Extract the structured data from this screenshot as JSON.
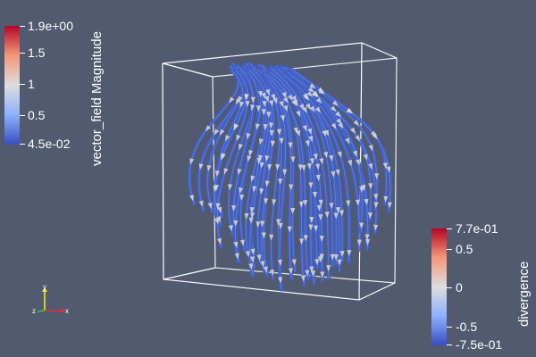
{
  "colorbar_left": {
    "title": "vector_field Magnitude",
    "labels": [
      "1.9e+00",
      "1.5",
      "1",
      "0.5",
      "4.5e-02"
    ],
    "colormap": [
      "#b40426",
      "#f4987a",
      "#dddddd",
      "#8db0fe",
      "#3b4cc0"
    ]
  },
  "colorbar_right": {
    "title": "divergence",
    "labels": [
      "7.7e-01",
      "0.5",
      "0",
      "-0.5",
      "-7.5e-01"
    ],
    "colormap": [
      "#b40426",
      "#f4987a",
      "#dddddd",
      "#8db0fe",
      "#3b4cc0"
    ]
  },
  "axes": {
    "x": "x",
    "y": "y",
    "z": "z"
  },
  "colors": {
    "background": "#525a6f",
    "tube": "#4160c6",
    "arrow": "#d8d8d8",
    "box": "#ffffff"
  }
}
